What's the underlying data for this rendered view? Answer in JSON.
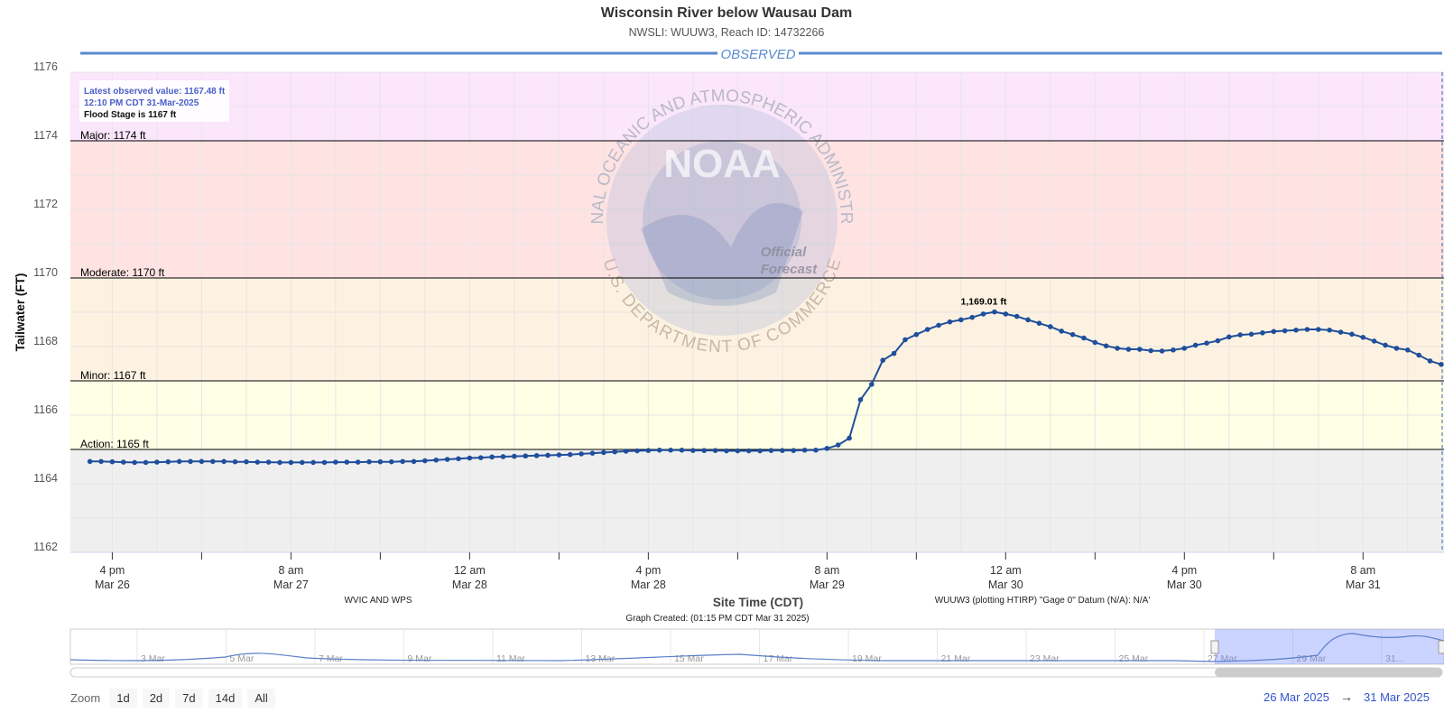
{
  "title": "Wisconsin River below Wausau Dam",
  "subtitle": "NWSLI: WUUW3, Reach ID: 14732266",
  "observed_label": "OBSERVED",
  "info_box": {
    "line1": "Latest observed value: 1167.48 ft",
    "line2": "12:10 PM CDT 31-Mar-2025",
    "line3": "Flood Stage is 1167 ft"
  },
  "footer": {
    "left": "WVIC AND WPS",
    "right": "WUUW3 (plotting HTIRP) \"Gage 0\" Datum (N/A): N/A'",
    "created": "Graph Created: (01:15 PM CDT Mar 31 2025)"
  },
  "watermark": {
    "logo_text": "NOAA",
    "ring_top": "NATIONAL OCEANIC AND ATMOSPHERIC ADMINISTRATION",
    "ring_bottom": "U.S. DEPARTMENT OF COMMERCE",
    "stamp": "Official Forecast"
  },
  "navigator": {
    "labels": [
      "3 Mar",
      "5 Mar",
      "7 Mar",
      "9 Mar",
      "11 Mar",
      "13 Mar",
      "15 Mar",
      "17 Mar",
      "19 Mar",
      "21 Mar",
      "23 Mar",
      "25 Mar",
      "27 Mar",
      "29 Mar",
      "31..."
    ]
  },
  "zoom": {
    "label": "Zoom",
    "buttons": [
      "1d",
      "2d",
      "7d",
      "14d",
      "All"
    ]
  },
  "range": {
    "from": "26 Mar 2025",
    "arrow": "→",
    "to": "31 Mar 2025"
  },
  "colors": {
    "series": "#1f4e9c",
    "major": "#fbe6fb",
    "moderate": "#ffe3e3",
    "minor": "#fdf2e1",
    "action": "#ffffe6",
    "normal": "#efefef",
    "observed_line": "#5b8bd0",
    "range_text": "#3355cc"
  },
  "chart_data": {
    "type": "line",
    "title": "Wisconsin River below Wausau Dam",
    "subtitle": "NWSLI: WUUW3, Reach ID: 14732266",
    "xlabel": "Site Time (CDT)",
    "ylabel": "Tailwater (FT)",
    "ylim": [
      1162,
      1176
    ],
    "y_ticks": [
      1162,
      1164,
      1166,
      1168,
      1170,
      1172,
      1174,
      1176
    ],
    "x_ticks": [
      {
        "time": "2025-03-26T16:00",
        "line1": "4 pm",
        "line2": "Mar 26"
      },
      {
        "time": "2025-03-27T08:00",
        "line1": "8 am",
        "line2": "Mar 27"
      },
      {
        "time": "2025-03-28T00:00",
        "line1": "12 am",
        "line2": "Mar 28"
      },
      {
        "time": "2025-03-28T16:00",
        "line1": "4 pm",
        "line2": "Mar 28"
      },
      {
        "time": "2025-03-29T08:00",
        "line1": "8 am",
        "line2": "Mar 29"
      },
      {
        "time": "2025-03-30T00:00",
        "line1": "12 am",
        "line2": "Mar 30"
      },
      {
        "time": "2025-03-30T16:00",
        "line1": "4 pm",
        "line2": "Mar 30"
      },
      {
        "time": "2025-03-31T08:00",
        "line1": "8 am",
        "line2": "Mar 31"
      }
    ],
    "flood_categories": [
      {
        "name": "Major",
        "label": "Major: 1174 ft",
        "value": 1174
      },
      {
        "name": "Moderate",
        "label": "Moderate: 1170 ft",
        "value": 1170
      },
      {
        "name": "Minor",
        "label": "Minor: 1167 ft",
        "value": 1167
      },
      {
        "name": "Action",
        "label": "Action: 1165 ft",
        "value": 1165
      }
    ],
    "peak_label": "1,169.01 ft",
    "grid": true,
    "series": [
      {
        "name": "Observed",
        "points": [
          [
            "2025-03-26T14:00",
            1164.65
          ],
          [
            "2025-03-26T15:00",
            1164.65
          ],
          [
            "2025-03-26T16:00",
            1164.64
          ],
          [
            "2025-03-26T17:00",
            1164.63
          ],
          [
            "2025-03-26T18:00",
            1164.62
          ],
          [
            "2025-03-26T19:00",
            1164.62
          ],
          [
            "2025-03-26T20:00",
            1164.63
          ],
          [
            "2025-03-26T21:00",
            1164.64
          ],
          [
            "2025-03-26T22:00",
            1164.65
          ],
          [
            "2025-03-26T23:00",
            1164.65
          ],
          [
            "2025-03-27T00:00",
            1164.65
          ],
          [
            "2025-03-27T01:00",
            1164.65
          ],
          [
            "2025-03-27T02:00",
            1164.65
          ],
          [
            "2025-03-27T03:00",
            1164.64
          ],
          [
            "2025-03-27T04:00",
            1164.64
          ],
          [
            "2025-03-27T05:00",
            1164.63
          ],
          [
            "2025-03-27T06:00",
            1164.63
          ],
          [
            "2025-03-27T07:00",
            1164.62
          ],
          [
            "2025-03-27T08:00",
            1164.62
          ],
          [
            "2025-03-27T09:00",
            1164.62
          ],
          [
            "2025-03-27T10:00",
            1164.62
          ],
          [
            "2025-03-27T11:00",
            1164.62
          ],
          [
            "2025-03-27T12:00",
            1164.63
          ],
          [
            "2025-03-27T13:00",
            1164.63
          ],
          [
            "2025-03-27T14:00",
            1164.63
          ],
          [
            "2025-03-27T15:00",
            1164.64
          ],
          [
            "2025-03-27T16:00",
            1164.64
          ],
          [
            "2025-03-27T17:00",
            1164.64
          ],
          [
            "2025-03-27T18:00",
            1164.65
          ],
          [
            "2025-03-27T19:00",
            1164.65
          ],
          [
            "2025-03-27T20:00",
            1164.67
          ],
          [
            "2025-03-27T21:00",
            1164.69
          ],
          [
            "2025-03-27T22:00",
            1164.71
          ],
          [
            "2025-03-27T23:00",
            1164.73
          ],
          [
            "2025-03-28T00:00",
            1164.75
          ],
          [
            "2025-03-28T01:00",
            1164.76
          ],
          [
            "2025-03-28T02:00",
            1164.78
          ],
          [
            "2025-03-28T03:00",
            1164.79
          ],
          [
            "2025-03-28T04:00",
            1164.8
          ],
          [
            "2025-03-28T05:00",
            1164.81
          ],
          [
            "2025-03-28T06:00",
            1164.82
          ],
          [
            "2025-03-28T07:00",
            1164.83
          ],
          [
            "2025-03-28T08:00",
            1164.84
          ],
          [
            "2025-03-28T09:00",
            1164.85
          ],
          [
            "2025-03-28T10:00",
            1164.87
          ],
          [
            "2025-03-28T11:00",
            1164.89
          ],
          [
            "2025-03-28T12:00",
            1164.91
          ],
          [
            "2025-03-28T13:00",
            1164.93
          ],
          [
            "2025-03-28T14:00",
            1164.95
          ],
          [
            "2025-03-28T15:00",
            1164.96
          ],
          [
            "2025-03-28T16:00",
            1164.97
          ],
          [
            "2025-03-28T17:00",
            1164.98
          ],
          [
            "2025-03-28T18:00",
            1164.98
          ],
          [
            "2025-03-28T19:00",
            1164.98
          ],
          [
            "2025-03-28T20:00",
            1164.97
          ],
          [
            "2025-03-28T21:00",
            1164.97
          ],
          [
            "2025-03-28T22:00",
            1164.97
          ],
          [
            "2025-03-28T23:00",
            1164.96
          ],
          [
            "2025-03-29T00:00",
            1164.96
          ],
          [
            "2025-03-29T01:00",
            1164.96
          ],
          [
            "2025-03-29T02:00",
            1164.96
          ],
          [
            "2025-03-29T03:00",
            1164.97
          ],
          [
            "2025-03-29T04:00",
            1164.97
          ],
          [
            "2025-03-29T05:00",
            1164.97
          ],
          [
            "2025-03-29T06:00",
            1164.98
          ],
          [
            "2025-03-29T07:00",
            1164.98
          ],
          [
            "2025-03-29T08:00",
            1165.03
          ],
          [
            "2025-03-29T09:00",
            1165.13
          ],
          [
            "2025-03-29T10:00",
            1165.33
          ],
          [
            "2025-03-29T11:00",
            1166.45
          ],
          [
            "2025-03-29T12:00",
            1166.9
          ],
          [
            "2025-03-29T13:00",
            1167.6
          ],
          [
            "2025-03-29T14:00",
            1167.8
          ],
          [
            "2025-03-29T15:00",
            1168.2
          ],
          [
            "2025-03-29T16:00",
            1168.35
          ],
          [
            "2025-03-29T17:00",
            1168.5
          ],
          [
            "2025-03-29T18:00",
            1168.62
          ],
          [
            "2025-03-29T19:00",
            1168.72
          ],
          [
            "2025-03-29T20:00",
            1168.78
          ],
          [
            "2025-03-29T21:00",
            1168.85
          ],
          [
            "2025-03-29T22:00",
            1168.95
          ],
          [
            "2025-03-29T23:00",
            1169.01
          ],
          [
            "2025-03-30T00:00",
            1168.95
          ],
          [
            "2025-03-30T01:00",
            1168.88
          ],
          [
            "2025-03-30T02:00",
            1168.78
          ],
          [
            "2025-03-30T03:00",
            1168.68
          ],
          [
            "2025-03-30T04:00",
            1168.58
          ],
          [
            "2025-03-30T05:00",
            1168.45
          ],
          [
            "2025-03-30T06:00",
            1168.35
          ],
          [
            "2025-03-30T07:00",
            1168.25
          ],
          [
            "2025-03-30T08:00",
            1168.12
          ],
          [
            "2025-03-30T09:00",
            1168.02
          ],
          [
            "2025-03-30T10:00",
            1167.95
          ],
          [
            "2025-03-30T11:00",
            1167.92
          ],
          [
            "2025-03-30T12:00",
            1167.92
          ],
          [
            "2025-03-30T13:00",
            1167.88
          ],
          [
            "2025-03-30T14:00",
            1167.87
          ],
          [
            "2025-03-30T15:00",
            1167.9
          ],
          [
            "2025-03-30T16:00",
            1167.95
          ],
          [
            "2025-03-30T17:00",
            1168.04
          ],
          [
            "2025-03-30T18:00",
            1168.1
          ],
          [
            "2025-03-30T19:00",
            1168.17
          ],
          [
            "2025-03-30T20:00",
            1168.28
          ],
          [
            "2025-03-30T21:00",
            1168.34
          ],
          [
            "2025-03-30T22:00",
            1168.36
          ],
          [
            "2025-03-30T23:00",
            1168.4
          ],
          [
            "2025-03-31T00:00",
            1168.44
          ],
          [
            "2025-03-31T01:00",
            1168.46
          ],
          [
            "2025-03-31T02:00",
            1168.48
          ],
          [
            "2025-03-31T03:00",
            1168.5
          ],
          [
            "2025-03-31T04:00",
            1168.5
          ],
          [
            "2025-03-31T05:00",
            1168.48
          ],
          [
            "2025-03-31T06:00",
            1168.42
          ],
          [
            "2025-03-31T07:00",
            1168.36
          ],
          [
            "2025-03-31T08:00",
            1168.27
          ],
          [
            "2025-03-31T09:00",
            1168.16
          ],
          [
            "2025-03-31T10:00",
            1168.04
          ],
          [
            "2025-03-31T11:00",
            1167.95
          ],
          [
            "2025-03-31T12:00",
            1167.9
          ],
          [
            "2025-03-31T13:00",
            1167.75
          ],
          [
            "2025-03-31T14:00",
            1167.58
          ],
          [
            "2025-03-31T15:00",
            1167.48
          ]
        ]
      }
    ]
  }
}
